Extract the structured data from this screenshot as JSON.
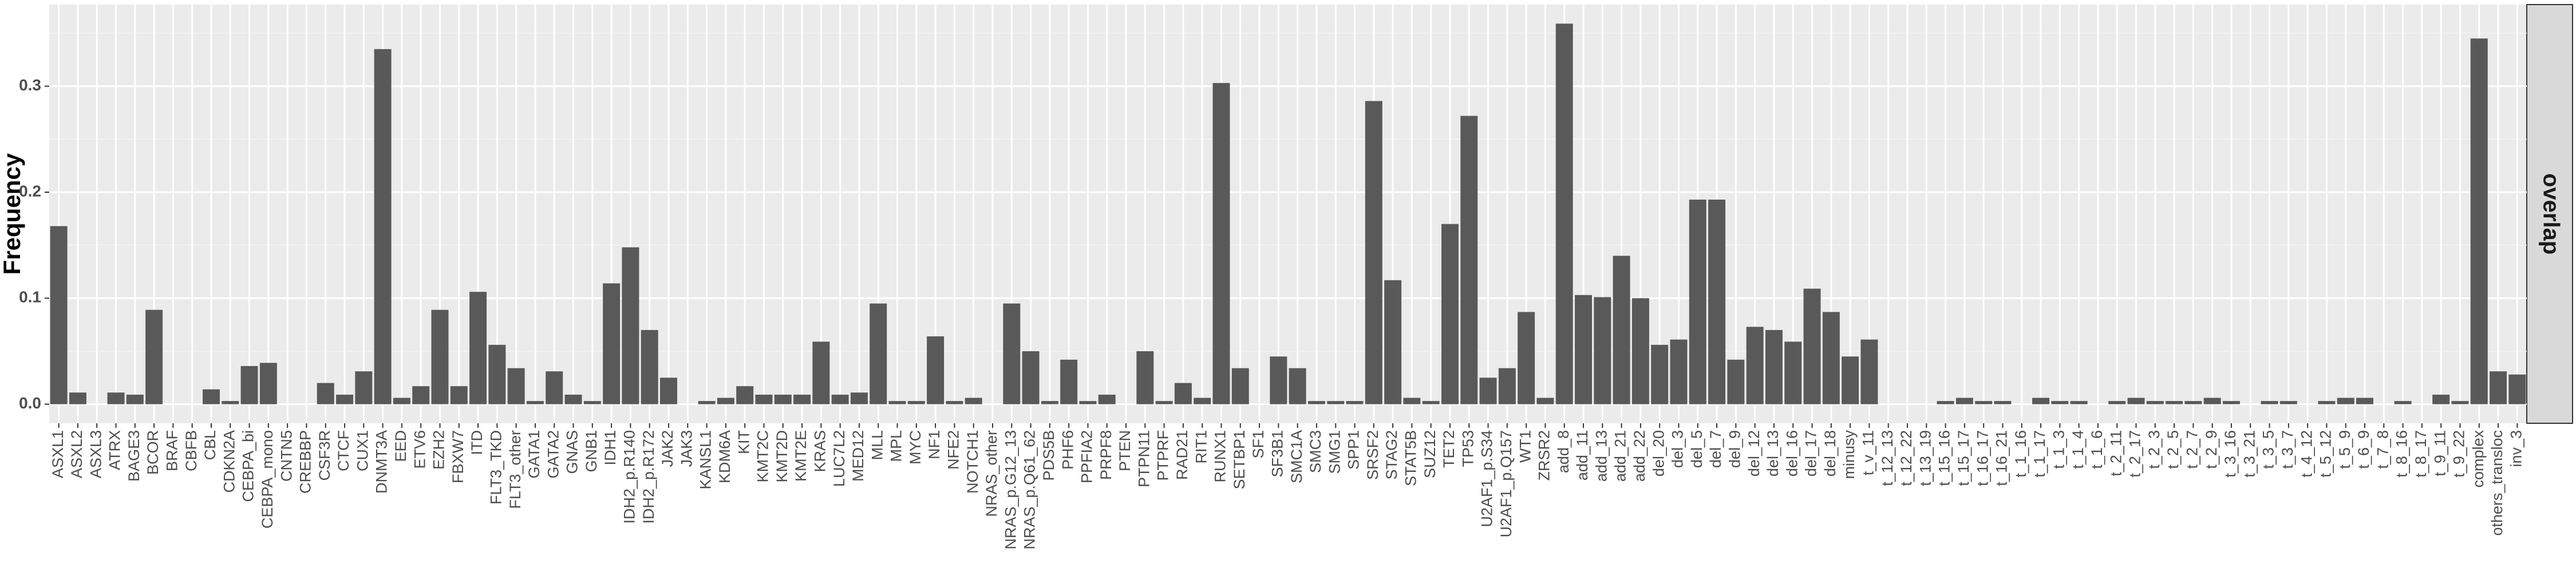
{
  "chart_data": {
    "type": "bar",
    "y_label": "Frequency",
    "facet_label": "overlap",
    "categories": [
      "ASXL1",
      "ASXL2",
      "ASXL3",
      "ATRX",
      "BAGE3",
      "BCOR",
      "BRAF",
      "CBFB",
      "CBL",
      "CDKN2A",
      "CEBPA_bi",
      "CEBPA_mono",
      "CNTN5",
      "CREBBP",
      "CSF3R",
      "CTCF",
      "CUX1",
      "DNMT3A",
      "EED",
      "ETV6",
      "EZH2",
      "FBXW7",
      "ITD",
      "FLT3_TKD",
      "FLT3_other",
      "GATA1",
      "GATA2",
      "GNAS",
      "GNB1",
      "IDH1",
      "IDH2_p.R140",
      "IDH2_p.R172",
      "JAK2",
      "JAK3",
      "KANSL1",
      "KDM6A",
      "KIT",
      "KMT2C",
      "KMT2D",
      "KMT2E",
      "KRAS",
      "LUC7L2",
      "MED12",
      "MLL",
      "MPL",
      "MYC",
      "NF1",
      "NFE2",
      "NOTCH1",
      "NRAS_other",
      "NRAS_p.G12_13",
      "NRAS_p.Q61_62",
      "PDS5B",
      "PHF6",
      "PPFIA2",
      "PRPF8",
      "PTEN",
      "PTPN11",
      "PTPRF",
      "RAD21",
      "RIT1",
      "RUNX1",
      "SETBP1",
      "SF1",
      "SF3B1",
      "SMC1A",
      "SMC3",
      "SMG1",
      "SPP1",
      "SRSF2",
      "STAG2",
      "STAT5B",
      "SUZ12",
      "TET2",
      "TP53",
      "U2AF1_p.S34",
      "U2AF1_p.Q157",
      "WT1",
      "ZRSR2",
      "add_8",
      "add_11",
      "add_13",
      "add_21",
      "add_22",
      "del_20",
      "del_3",
      "del_5",
      "del_7",
      "del_9",
      "del_12",
      "del_13",
      "del_16",
      "del_17",
      "del_18",
      "minusy",
      "t_v_11",
      "t_12_13",
      "t_12_22",
      "t_13_19",
      "t_15_16",
      "t_15_17",
      "t_16_17",
      "t_16_21",
      "t_1_16",
      "t_1_17",
      "t_1_3",
      "t_1_4",
      "t_1_6",
      "t_2_11",
      "t_2_17",
      "t_2_3",
      "t_2_5",
      "t_2_7",
      "t_2_9",
      "t_3_16",
      "t_3_21",
      "t_3_5",
      "t_3_7",
      "t_4_12",
      "t_5_12",
      "t_5_9",
      "t_6_9",
      "t_7_8",
      "t_8_16",
      "t_8_17",
      "t_9_11",
      "t_9_22",
      "complex",
      "others_transloc",
      "inv_3"
    ],
    "values": [
      0.168,
      0.011,
      0,
      0.011,
      0.009,
      0.089,
      0,
      0,
      0.014,
      0.003,
      0.036,
      0.039,
      0,
      0,
      0.02,
      0.009,
      0.031,
      0.335,
      0.006,
      0.017,
      0.089,
      0.017,
      0.106,
      0.056,
      0.034,
      0.003,
      0.031,
      0.009,
      0.003,
      0.114,
      0.148,
      0.07,
      0.025,
      0,
      0.003,
      0.006,
      0.017,
      0.009,
      0.009,
      0.009,
      0.059,
      0.009,
      0.011,
      0.095,
      0.003,
      0.003,
      0.064,
      0.003,
      0.006,
      0,
      0.095,
      0.05,
      0.003,
      0.042,
      0.003,
      0.009,
      0,
      0.05,
      0.003,
      0.02,
      0.006,
      0.303,
      0.034,
      0,
      0.045,
      0.034,
      0.003,
      0.003,
      0.003,
      0.286,
      0.117,
      0.006,
      0.003,
      0.17,
      0.272,
      0.025,
      0.034,
      0.087,
      0.006,
      0.359,
      0.103,
      0.101,
      0.14,
      0.1,
      0.056,
      0.061,
      0.193,
      0.193,
      0.042,
      0.073,
      0.07,
      0.059,
      0.109,
      0.087,
      0.045,
      0.061,
      0,
      0,
      0,
      0.003,
      0.006,
      0.003,
      0.003,
      0,
      0.006,
      0.003,
      0.003,
      0,
      0.003,
      0.006,
      0.003,
      0.003,
      0.003,
      0.006,
      0.003,
      0,
      0.003,
      0.003,
      0,
      0.003,
      0.006,
      0.006,
      0,
      0.003,
      0,
      0.009,
      0.003,
      0.345,
      0.031,
      0.028
    ],
    "color": "#595959",
    "ylim": [
      -0.018,
      0.377
    ],
    "yticks": [
      {
        "value": 0,
        "label": "0.0"
      },
      0.1,
      0.2,
      0.3
    ],
    "grid": true
  }
}
